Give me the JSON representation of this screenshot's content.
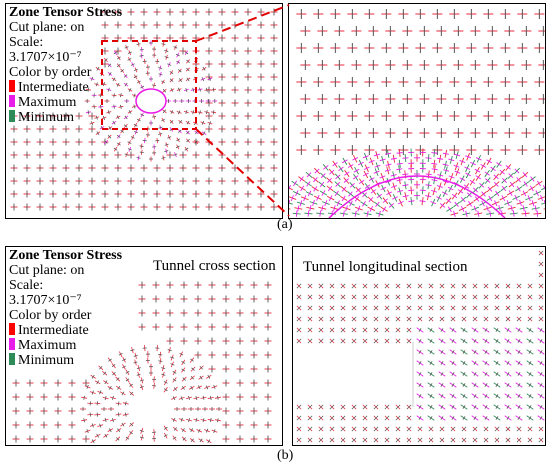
{
  "legend": {
    "title": "Zone Tensor Stress",
    "cut_plane": "Cut plane: on",
    "scale_label": "Scale:",
    "scale_value": "3.1707×10⁻⁷",
    "color_by": "Color by order",
    "items": [
      {
        "label": "Intermediate",
        "color": "#ff0000"
      },
      {
        "label": "Maximum",
        "color": "#e81ce8"
      },
      {
        "label": "Minimum",
        "color": "#2e8b57"
      }
    ]
  },
  "panel_b": {
    "cross_title": "Tunnel cross section",
    "long_title": "Tunnel longitudinal section"
  },
  "captions": {
    "a": "(a)",
    "b": "(b)"
  },
  "colors": {
    "zoom_box": "#e00000",
    "cross_red": "#e8283c",
    "cross_grey": "#555555",
    "cross_pink": "#e81ce8",
    "cross_green": "#2e8b57"
  }
}
